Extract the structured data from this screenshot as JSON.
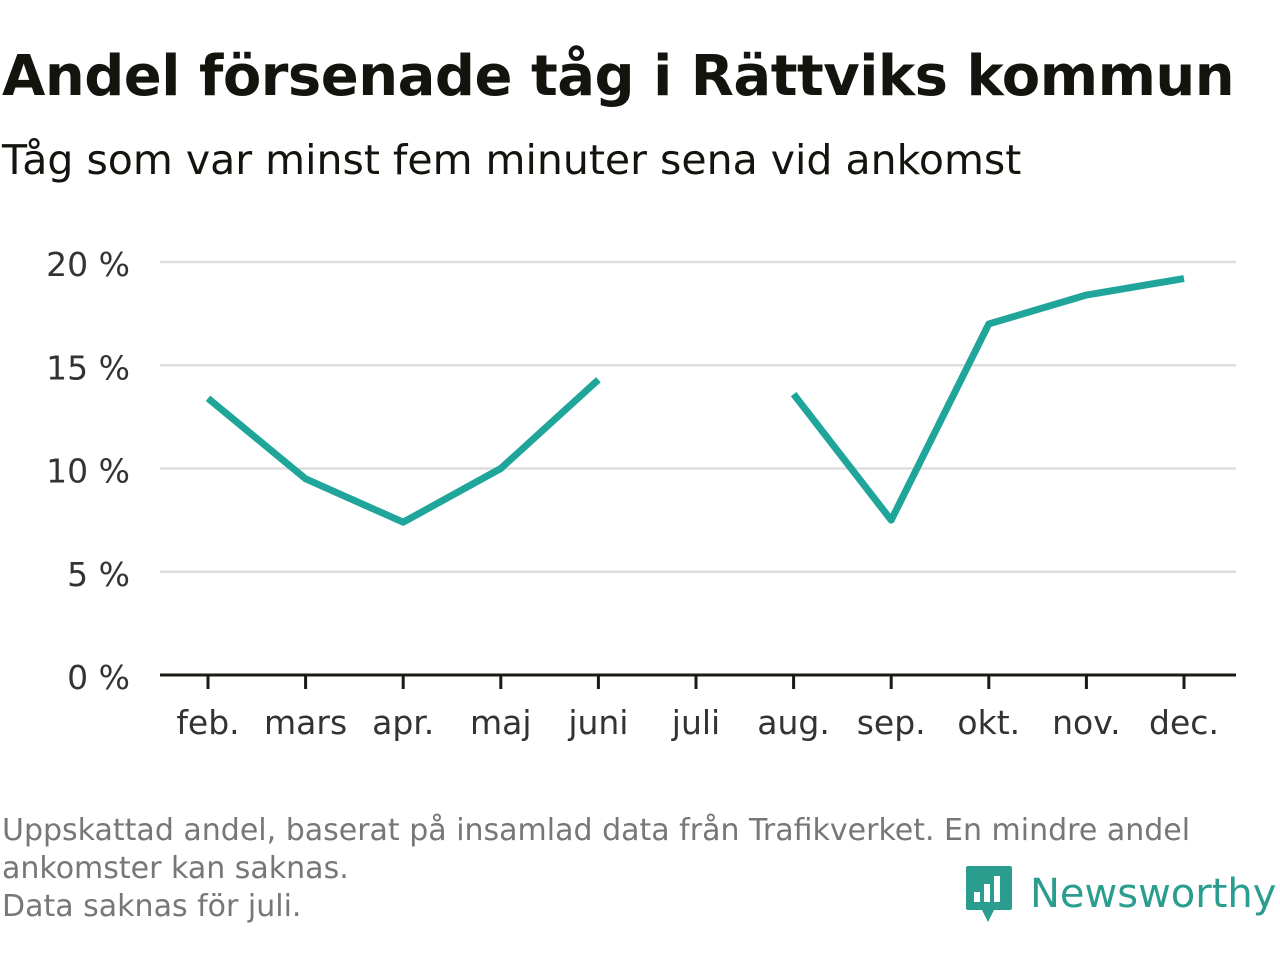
{
  "title": "Andel försenade tåg i Rättviks kommun",
  "subtitle": "Tåg som var minst fem minuter sena vid ankomst",
  "notes": [
    "Uppskattad andel, baserat på insamlad data från Trafikverket. En mindre andel",
    "ankomster kan saknas.",
    "Data saknas för juli."
  ],
  "brand": {
    "name": "Newsworthy",
    "icon": "newsworthy-logo-icon",
    "color": "#2a9d8f"
  },
  "chart_data": {
    "type": "line",
    "categories": [
      "feb.",
      "mars",
      "apr.",
      "maj",
      "juni",
      "juli",
      "aug.",
      "sep.",
      "okt.",
      "nov.",
      "dec."
    ],
    "series": [
      {
        "values": [
          13.4,
          9.5,
          7.4,
          10.0,
          14.3,
          null,
          13.6,
          7.5,
          17.0,
          18.4,
          19.2
        ]
      }
    ],
    "ylim": [
      0,
      20
    ],
    "yticks": [
      0,
      5,
      10,
      15,
      20
    ],
    "ytick_labels": [
      "0 %",
      "5 %",
      "10 %",
      "15 %",
      "20 %"
    ],
    "xlabel": "",
    "ylabel": "",
    "grid": true,
    "colors": {
      "line": "#1fa59a",
      "grid": "#dddddd",
      "axis": "#1a1a14"
    }
  }
}
